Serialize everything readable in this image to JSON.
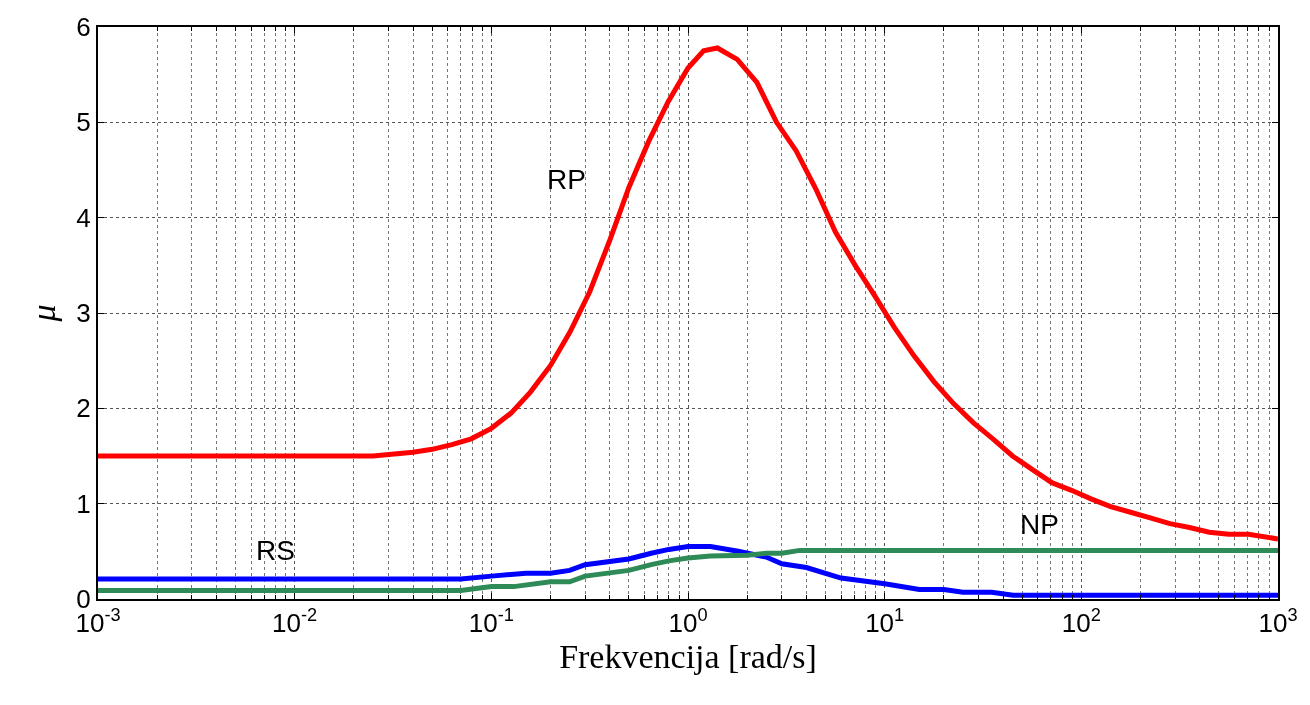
{
  "chart_data": {
    "type": "line",
    "xlabel": "Frekvencija [rad/s]",
    "ylabel": "μ",
    "log": "x",
    "grid": true,
    "legend": false,
    "line_style": "solid",
    "marker": "none",
    "xlim": [
      0.001,
      1000
    ],
    "xticks": [
      {
        "value": 0.001,
        "label": "10$^{-3}$"
      },
      {
        "value": 0.01,
        "label": "10$^{-2}$"
      },
      {
        "value": 0.1,
        "label": "10$^{-1}$"
      },
      {
        "value": 1,
        "label": "10$^{0}$"
      },
      {
        "value": 10,
        "label": "10$^{1}$"
      },
      {
        "value": 100,
        "label": "10$^{2}$"
      },
      {
        "value": 1000,
        "label": "10$^{3}$"
      }
    ],
    "ylim": [
      0,
      6
    ],
    "yticks": [
      0,
      1,
      2,
      3,
      4,
      5,
      6
    ],
    "series": [
      {
        "name": "RP",
        "color": "#ff0000",
        "x": [
          0.001,
          0.025,
          0.04,
          0.05,
          0.063,
          0.079,
          0.1,
          0.126,
          0.158,
          0.2,
          0.251,
          0.316,
          0.398,
          0.501,
          0.631,
          0.794,
          1.0,
          1.2,
          1.41,
          1.78,
          2.24,
          2.82,
          3.55,
          4.47,
          5.62,
          7.08,
          8.91,
          11.2,
          14.1,
          17.8,
          22.4,
          28.2,
          35.5,
          44.7,
          56.2,
          70.8,
          89.1,
          112,
          141,
          178,
          224,
          282,
          355,
          447,
          562,
          708,
          1000
        ],
        "values": [
          1.5,
          1.5,
          1.54,
          1.57,
          1.62,
          1.68,
          1.79,
          1.95,
          2.17,
          2.45,
          2.8,
          3.22,
          3.75,
          4.32,
          4.8,
          5.22,
          5.57,
          5.75,
          5.78,
          5.66,
          5.42,
          5.0,
          4.7,
          4.3,
          3.85,
          3.5,
          3.18,
          2.85,
          2.55,
          2.28,
          2.05,
          1.85,
          1.68,
          1.5,
          1.36,
          1.22,
          1.14,
          1.05,
          0.97,
          0.91,
          0.85,
          0.79,
          0.75,
          0.7,
          0.68,
          0.68,
          0.63
        ]
      },
      {
        "name": "RS",
        "color": "#0000ff",
        "x": [
          0.001,
          0.07,
          0.1,
          0.15,
          0.2,
          0.25,
          0.3,
          0.5,
          0.65,
          0.8,
          1.0,
          1.3,
          1.8,
          2.5,
          3,
          4,
          6,
          10,
          15,
          20,
          25,
          35,
          45,
          1000
        ],
        "values": [
          0.21,
          0.21,
          0.24,
          0.27,
          0.27,
          0.3,
          0.36,
          0.42,
          0.48,
          0.52,
          0.55,
          0.55,
          0.5,
          0.44,
          0.37,
          0.33,
          0.22,
          0.16,
          0.1,
          0.1,
          0.07,
          0.07,
          0.04,
          0.04
        ]
      },
      {
        "name": "NP",
        "color": "#2e8b57",
        "x": [
          0.001,
          0.07,
          0.1,
          0.13,
          0.2,
          0.25,
          0.3,
          0.5,
          0.65,
          0.8,
          1.0,
          1.3,
          2,
          2.5,
          3,
          3.7,
          1000
        ],
        "values": [
          0.09,
          0.09,
          0.13,
          0.13,
          0.18,
          0.18,
          0.24,
          0.3,
          0.36,
          0.4,
          0.43,
          0.45,
          0.46,
          0.48,
          0.48,
          0.51,
          0.51
        ]
      }
    ]
  }
}
